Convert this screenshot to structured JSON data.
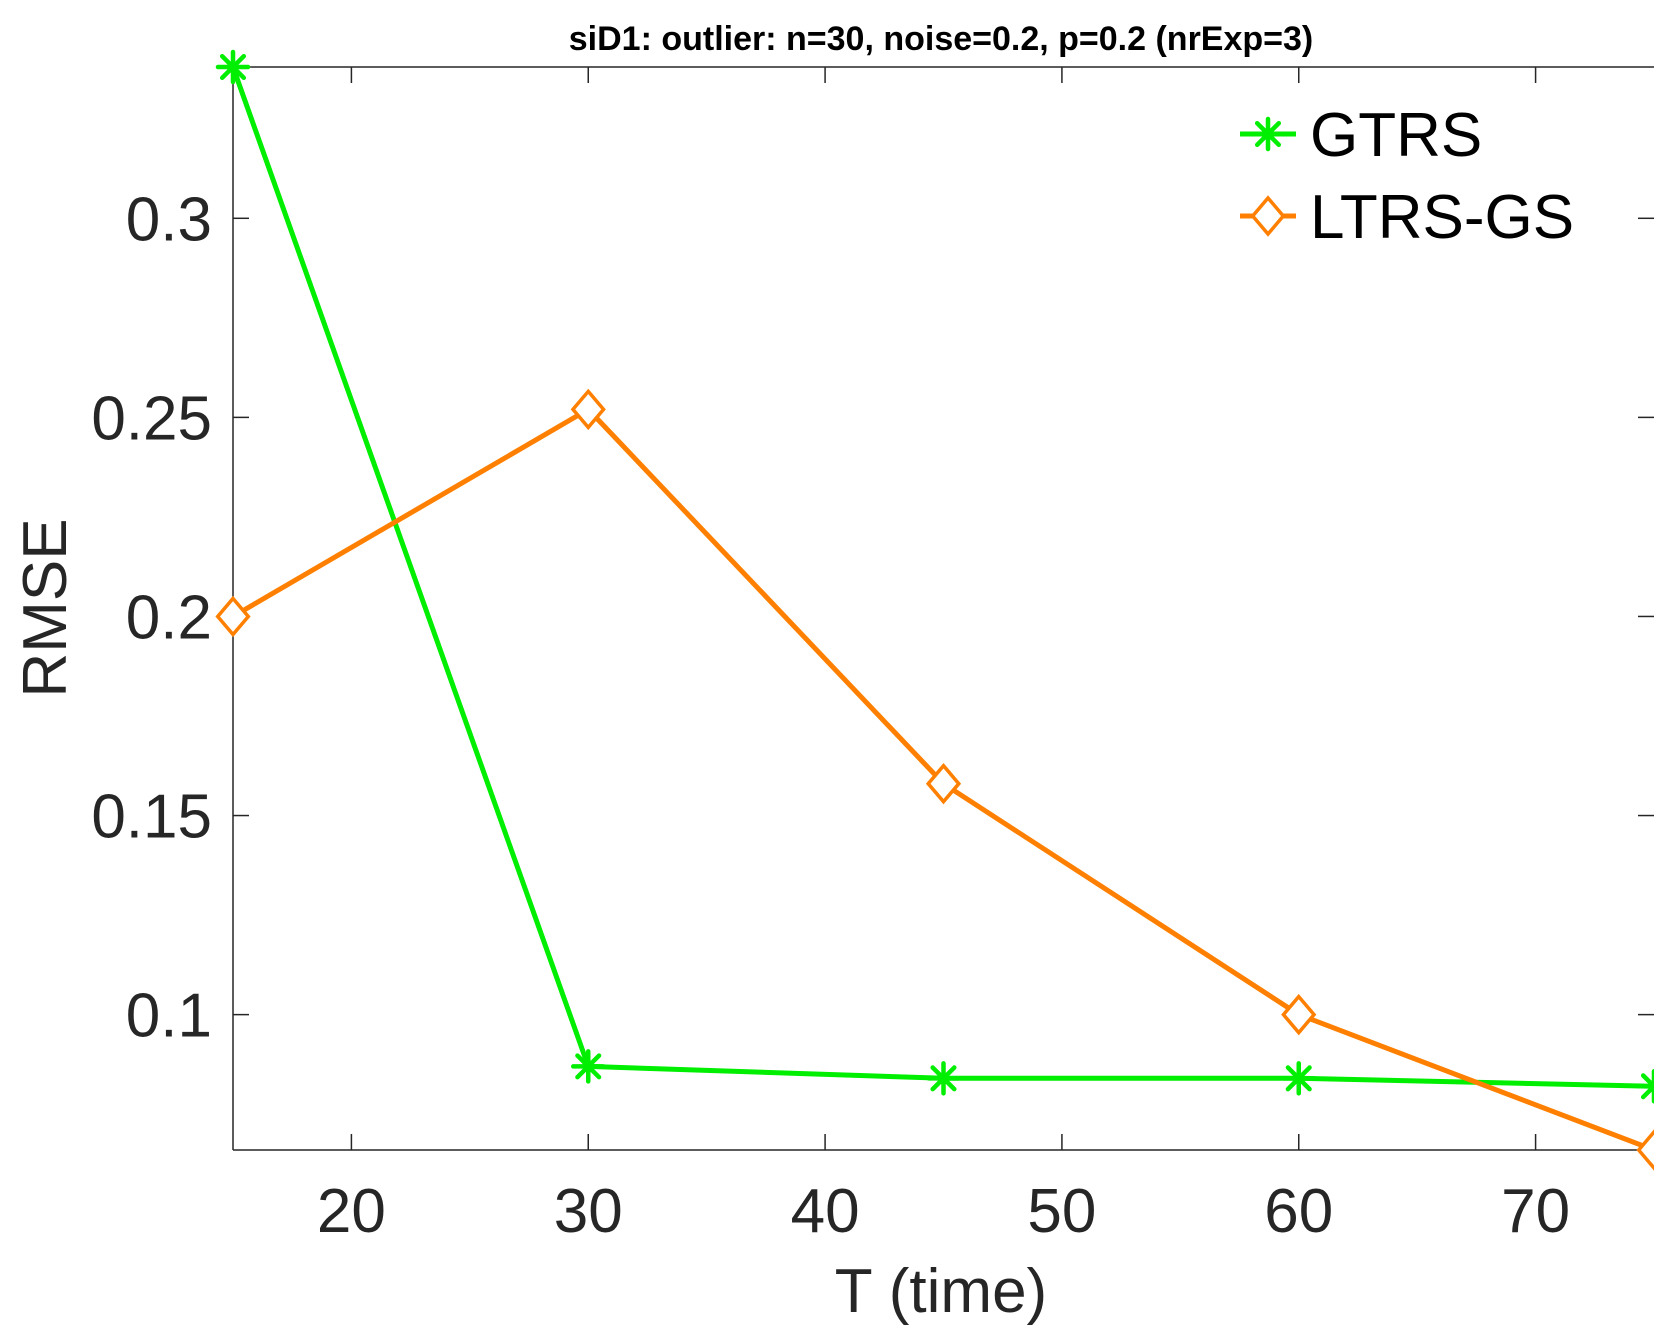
{
  "chart_data": {
    "type": "line",
    "title": "siD1: outlier: n=30, noise=0.2, p=0.2 (nrExp=3)",
    "xlabel": "T (time)",
    "ylabel": "RMSE",
    "xlim": [
      15,
      75
    ],
    "ylim": [
      0.066,
      0.338
    ],
    "xticks": [
      20,
      30,
      40,
      50,
      60,
      70
    ],
    "xtick_labels": [
      "20",
      "30",
      "40",
      "50",
      "60",
      "70"
    ],
    "yticks": [
      0.1,
      0.15,
      0.2,
      0.25,
      0.3
    ],
    "ytick_labels": [
      "0.1",
      "0.15",
      "0.2",
      "0.25",
      "0.3"
    ],
    "grid": false,
    "legend_position": "top-right",
    "series": [
      {
        "name": "GTRS",
        "color": "#00ee00",
        "marker": "asterisk",
        "x": [
          15,
          30,
          45,
          60,
          75
        ],
        "y": [
          0.338,
          0.087,
          0.084,
          0.084,
          0.082
        ]
      },
      {
        "name": "LTRS-GS",
        "color": "#ff8000",
        "marker": "diamond",
        "x": [
          15,
          30,
          45,
          60,
          75
        ],
        "y": [
          0.2,
          0.252,
          0.158,
          0.1,
          0.066
        ]
      }
    ]
  }
}
